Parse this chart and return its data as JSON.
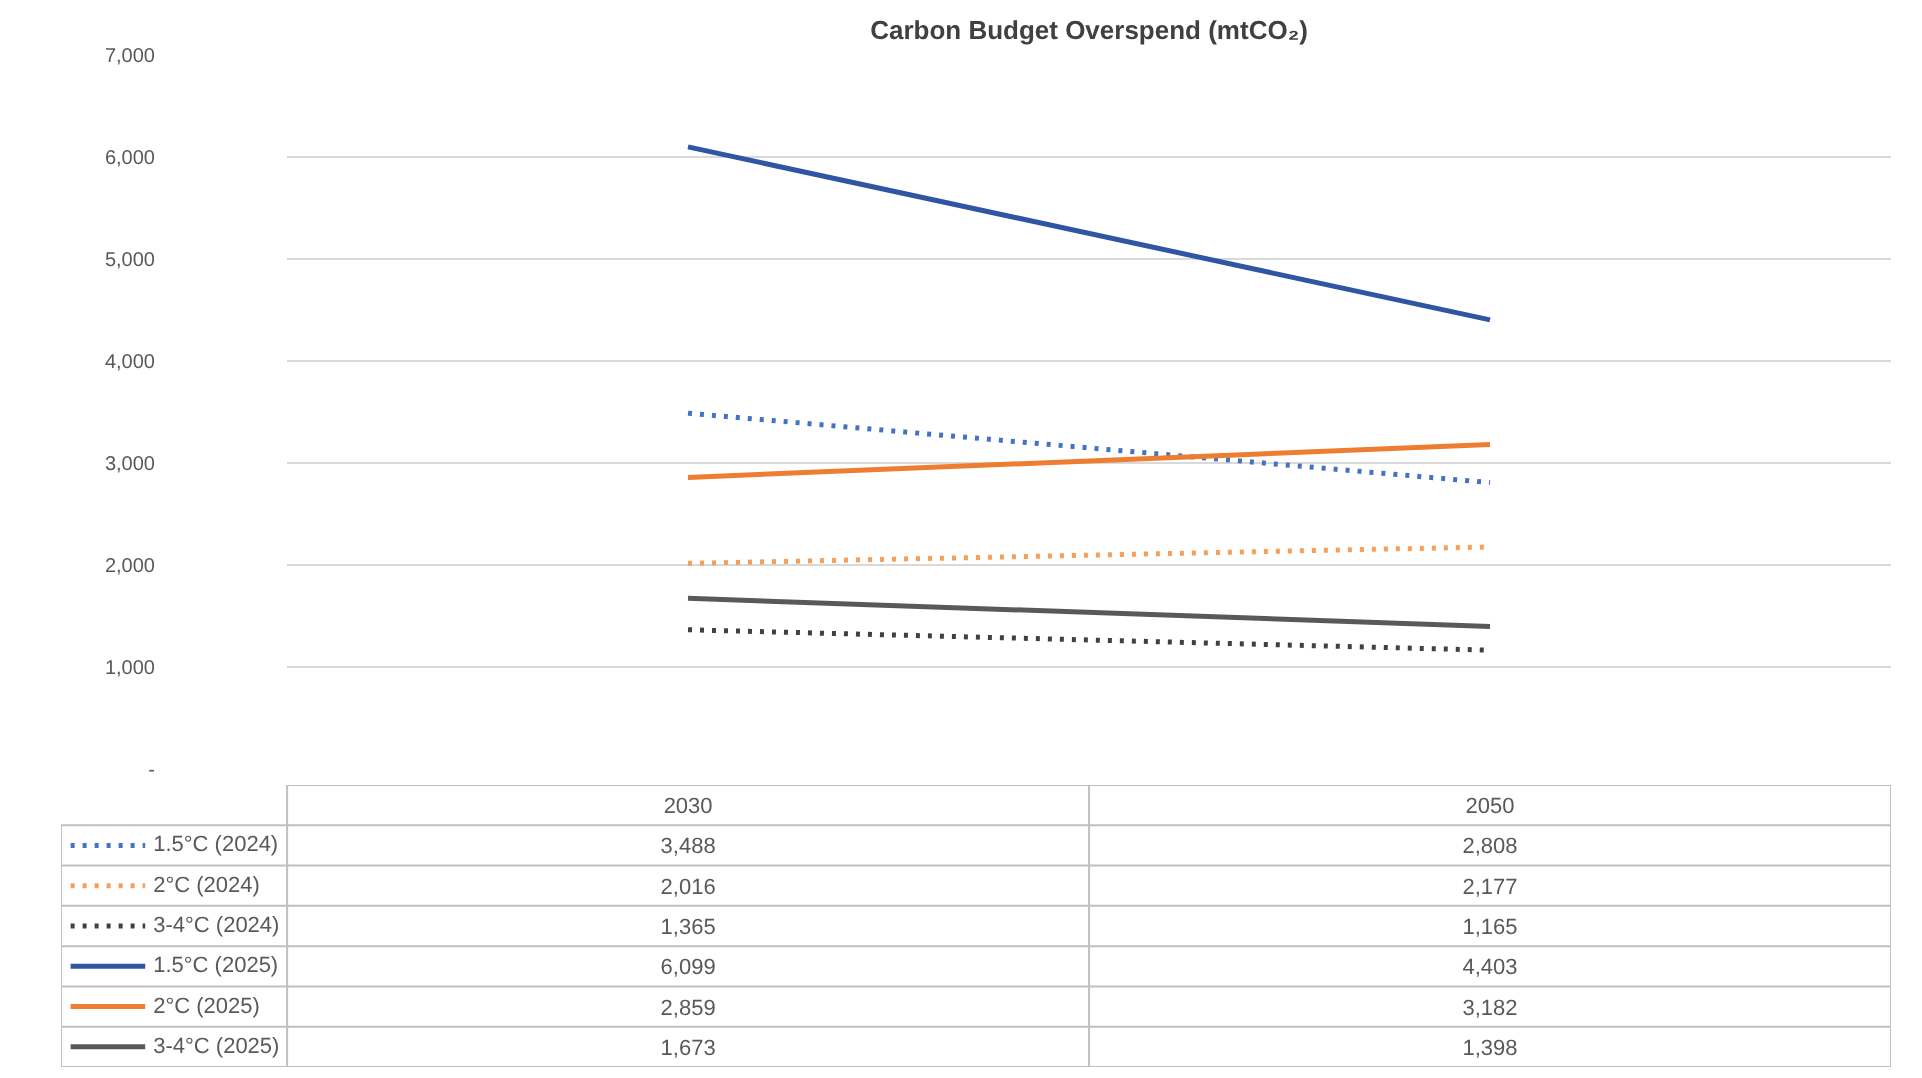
{
  "chart_data": {
    "type": "line",
    "title": "Carbon Budget Overspend (mtCO₂)",
    "categories": [
      "2030",
      "2050"
    ],
    "series": [
      {
        "name": "1.5°C (2024)",
        "color": "#4472c4",
        "line_style": "dotted",
        "values": [
          3488,
          2808
        ],
        "value_labels": [
          "3,488",
          "2,808"
        ]
      },
      {
        "name": "2°C (2024)",
        "color": "#f4a05a",
        "line_style": "dotted",
        "values": [
          2016,
          2177
        ],
        "value_labels": [
          "2,016",
          "2,177"
        ]
      },
      {
        "name": "3-4°C (2024)",
        "color": "#404040",
        "line_style": "dotted",
        "values": [
          1365,
          1165
        ],
        "value_labels": [
          "1,365",
          "1,165"
        ]
      },
      {
        "name": "1.5°C (2025)",
        "color": "#2f55a3",
        "line_style": "solid",
        "values": [
          6099,
          4403
        ],
        "value_labels": [
          "6,099",
          "4,403"
        ]
      },
      {
        "name": "2°C (2025)",
        "color": "#ed7d31",
        "line_style": "solid",
        "values": [
          2859,
          3182
        ],
        "value_labels": [
          "2,859",
          "3,182"
        ]
      },
      {
        "name": "3-4°C (2025)",
        "color": "#595959",
        "line_style": "solid",
        "values": [
          1673,
          1398
        ],
        "value_labels": [
          "1,673",
          "1,398"
        ]
      }
    ],
    "ylim": [
      0,
      7000
    ],
    "yticks": [
      {
        "value": 0,
        "label": "-"
      },
      {
        "value": 1000,
        "label": "1,000"
      },
      {
        "value": 2000,
        "label": "2,000"
      },
      {
        "value": 3000,
        "label": "3,000"
      },
      {
        "value": 4000,
        "label": "4,000"
      },
      {
        "value": 5000,
        "label": "5,000"
      },
      {
        "value": 6000,
        "label": "6,000"
      },
      {
        "value": 7000,
        "label": "7,000"
      }
    ],
    "grid": "y",
    "legend": "bottom",
    "data_labels": true
  }
}
